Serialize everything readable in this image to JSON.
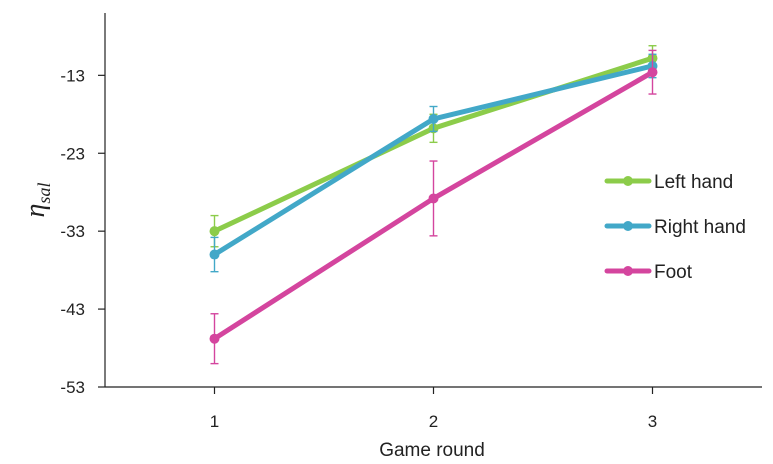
{
  "chart_data": {
    "type": "line",
    "title": "",
    "xlabel": "Game round",
    "ylabel": {
      "symbol": "η",
      "subscript": "sal"
    },
    "x": [
      1,
      2,
      3
    ],
    "xticks": [
      "1",
      "2",
      "3"
    ],
    "xlim": [
      0.5,
      3.5
    ],
    "yticks": [
      "-13",
      "-23",
      "-33",
      "-43",
      "-53"
    ],
    "ytick_values": [
      -13,
      -23,
      -33,
      -43,
      -53
    ],
    "ylim": [
      -53,
      -5
    ],
    "grid": false,
    "legend_position": "right",
    "series": [
      {
        "name": "Left hand",
        "color": "#8ccc4a",
        "values": [
          -33.0,
          -19.8,
          -10.8
        ],
        "err": [
          2.0,
          1.8,
          1.6
        ]
      },
      {
        "name": "Right hand",
        "color": "#42a8c8",
        "values": [
          -36.0,
          -18.6,
          -11.8
        ],
        "err": [
          2.2,
          1.6,
          1.5
        ]
      },
      {
        "name": "Foot",
        "color": "#d4459e",
        "values": [
          -46.8,
          -28.8,
          -12.6
        ],
        "err": [
          3.2,
          4.8,
          2.8
        ]
      }
    ]
  }
}
